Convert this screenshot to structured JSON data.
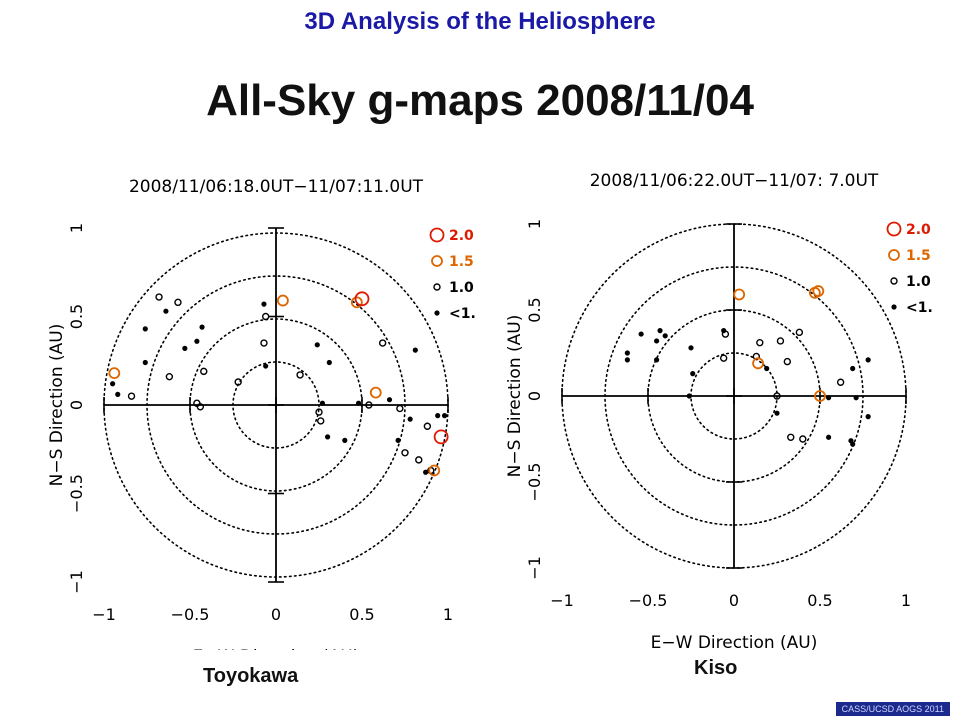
{
  "header": {
    "title": "3D Analysis of the Heliosphere"
  },
  "main": {
    "title": "All-Sky g-maps 2008/11/04"
  },
  "credit": "CASS/UCSD AOGS 2011",
  "chart_data": [
    {
      "type": "scatter",
      "title": "2008/11/06:18.0UT−11/07:11.0UT",
      "station": "Toyokawa",
      "xlabel": "E−W Direction (AU)",
      "ylabel": "N−S Direction (AU)",
      "xlim": [
        -1,
        1
      ],
      "ylim": [
        -1,
        1
      ],
      "xticks": [
        "−1",
        "−0.5",
        "0",
        "0.5",
        "1"
      ],
      "yticks": [
        "−1",
        "−0.5",
        "0",
        "0.5",
        "1"
      ],
      "circles": [
        0.25,
        0.5,
        0.75,
        1.0
      ],
      "legend": {
        "position": "top-right",
        "entries": [
          {
            "label": "2.0",
            "color": "#dd1a00",
            "size": "2.0"
          },
          {
            "label": "1.5",
            "color": "#dd6600",
            "size": "1.5"
          },
          {
            "label": "1.0",
            "color": "#000000",
            "size": "1.0"
          },
          {
            "label": "<1.",
            "color": "#000000",
            "size": "<1."
          }
        ]
      },
      "points": [
        {
          "x": -0.68,
          "y": 0.61,
          "g": "1.0"
        },
        {
          "x": -0.57,
          "y": 0.58,
          "g": "1.0"
        },
        {
          "x": -0.64,
          "y": 0.53,
          "g": "<1."
        },
        {
          "x": -0.76,
          "y": 0.43,
          "g": "<1."
        },
        {
          "x": -0.94,
          "y": 0.18,
          "g": "1.5"
        },
        {
          "x": -0.95,
          "y": 0.12,
          "g": "<1."
        },
        {
          "x": -0.92,
          "y": 0.06,
          "g": "<1."
        },
        {
          "x": -0.84,
          "y": 0.05,
          "g": "1.0"
        },
        {
          "x": -0.76,
          "y": 0.24,
          "g": "<1."
        },
        {
          "x": -0.62,
          "y": 0.16,
          "g": "1.0"
        },
        {
          "x": -0.53,
          "y": 0.32,
          "g": "<1."
        },
        {
          "x": -0.46,
          "y": 0.36,
          "g": "<1."
        },
        {
          "x": -0.43,
          "y": 0.44,
          "g": "<1."
        },
        {
          "x": -0.42,
          "y": 0.19,
          "g": "1.0"
        },
        {
          "x": -0.46,
          "y": 0.01,
          "g": "1.0"
        },
        {
          "x": -0.44,
          "y": -0.01,
          "g": "1.0"
        },
        {
          "x": -0.22,
          "y": 0.13,
          "g": "1.0"
        },
        {
          "x": -0.07,
          "y": 0.57,
          "g": "<1."
        },
        {
          "x": -0.06,
          "y": 0.5,
          "g": "1.0"
        },
        {
          "x": -0.07,
          "y": 0.35,
          "g": "1.0"
        },
        {
          "x": -0.06,
          "y": 0.22,
          "g": "<1."
        },
        {
          "x": 0.04,
          "y": 0.59,
          "g": "1.5"
        },
        {
          "x": 0.14,
          "y": 0.17,
          "g": "1.0"
        },
        {
          "x": 0.24,
          "y": 0.34,
          "g": "<1."
        },
        {
          "x": 0.31,
          "y": 0.24,
          "g": "<1."
        },
        {
          "x": 0.27,
          "y": 0.01,
          "g": "<1."
        },
        {
          "x": 0.25,
          "y": -0.04,
          "g": "1.0"
        },
        {
          "x": 0.26,
          "y": -0.09,
          "g": "1.0"
        },
        {
          "x": 0.3,
          "y": -0.18,
          "g": "<1."
        },
        {
          "x": 0.4,
          "y": -0.2,
          "g": "<1."
        },
        {
          "x": 0.47,
          "y": 0.58,
          "g": "1.5"
        },
        {
          "x": 0.5,
          "y": 0.6,
          "g": "2.0"
        },
        {
          "x": 0.48,
          "y": 0.01,
          "g": "<1."
        },
        {
          "x": 0.54,
          "y": 0.0,
          "g": "1.0"
        },
        {
          "x": 0.58,
          "y": 0.07,
          "g": "1.5"
        },
        {
          "x": 0.66,
          "y": 0.03,
          "g": "<1."
        },
        {
          "x": 0.72,
          "y": -0.02,
          "g": "1.0"
        },
        {
          "x": 0.78,
          "y": -0.08,
          "g": "<1."
        },
        {
          "x": 0.71,
          "y": -0.2,
          "g": "<1."
        },
        {
          "x": 0.75,
          "y": -0.27,
          "g": "1.0"
        },
        {
          "x": 0.83,
          "y": -0.31,
          "g": "1.0"
        },
        {
          "x": 0.87,
          "y": -0.38,
          "g": "<1."
        },
        {
          "x": 0.9,
          "y": -0.37,
          "g": "1.0"
        },
        {
          "x": 0.92,
          "y": -0.37,
          "g": "1.5"
        },
        {
          "x": 0.88,
          "y": -0.12,
          "g": "1.0"
        },
        {
          "x": 0.94,
          "y": -0.06,
          "g": "<1."
        },
        {
          "x": 0.98,
          "y": -0.06,
          "g": "<1."
        },
        {
          "x": 0.96,
          "y": -0.18,
          "g": "2.0"
        },
        {
          "x": 0.81,
          "y": 0.31,
          "g": "<1."
        },
        {
          "x": 0.62,
          "y": 0.35,
          "g": "1.0"
        }
      ]
    },
    {
      "type": "scatter",
      "title": "2008/11/06:22.0UT−11/07: 7.0UT",
      "station": "Kiso",
      "xlabel": "E−W Direction (AU)",
      "ylabel": "N−S Direction (AU)",
      "xlim": [
        -1,
        1
      ],
      "ylim": [
        -1,
        1
      ],
      "xticks": [
        "−1",
        "−0.5",
        "0",
        "0.5",
        "1"
      ],
      "yticks": [
        "−1",
        "−0.5",
        "0",
        "0.5",
        "1"
      ],
      "circles": [
        0.25,
        0.5,
        0.75,
        1.0
      ],
      "legend": {
        "position": "top-right",
        "entries": [
          {
            "label": "2.0",
            "color": "#dd1a00",
            "size": "2.0"
          },
          {
            "label": "1.5",
            "color": "#dd6600",
            "size": "1.5"
          },
          {
            "label": "1.0",
            "color": "#000000",
            "size": "1.0"
          },
          {
            "label": "<1.",
            "color": "#000000",
            "size": "<1."
          }
        ]
      },
      "points": [
        {
          "x": 0.03,
          "y": 0.59,
          "g": "1.5"
        },
        {
          "x": 0.47,
          "y": 0.6,
          "g": "1.5"
        },
        {
          "x": 0.49,
          "y": 0.61,
          "g": "1.5"
        },
        {
          "x": 0.38,
          "y": 0.37,
          "g": "1.0"
        },
        {
          "x": 0.27,
          "y": 0.32,
          "g": "1.0"
        },
        {
          "x": 0.15,
          "y": 0.31,
          "g": "1.0"
        },
        {
          "x": 0.31,
          "y": 0.2,
          "g": "1.0"
        },
        {
          "x": 0.13,
          "y": 0.23,
          "g": "1.0"
        },
        {
          "x": -0.05,
          "y": 0.36,
          "g": "1.0"
        },
        {
          "x": -0.06,
          "y": 0.38,
          "g": "<1."
        },
        {
          "x": -0.06,
          "y": 0.22,
          "g": "1.0"
        },
        {
          "x": -0.25,
          "y": 0.28,
          "g": "<1."
        },
        {
          "x": -0.43,
          "y": 0.38,
          "g": "<1."
        },
        {
          "x": -0.4,
          "y": 0.35,
          "g": "<1."
        },
        {
          "x": -0.45,
          "y": 0.32,
          "g": "<1."
        },
        {
          "x": -0.54,
          "y": 0.36,
          "g": "<1."
        },
        {
          "x": -0.62,
          "y": 0.25,
          "g": "<1."
        },
        {
          "x": -0.62,
          "y": 0.21,
          "g": "<1."
        },
        {
          "x": -0.45,
          "y": 0.21,
          "g": "<1."
        },
        {
          "x": -0.24,
          "y": 0.13,
          "g": "<1."
        },
        {
          "x": -0.26,
          "y": 0.0,
          "g": "<1."
        },
        {
          "x": 0.14,
          "y": 0.19,
          "g": "1.5"
        },
        {
          "x": 0.19,
          "y": 0.16,
          "g": "<1."
        },
        {
          "x": 0.25,
          "y": 0.0,
          "g": "1.0"
        },
        {
          "x": 0.25,
          "y": -0.1,
          "g": "<1."
        },
        {
          "x": 0.33,
          "y": -0.24,
          "g": "1.0"
        },
        {
          "x": 0.4,
          "y": -0.25,
          "g": "1.0"
        },
        {
          "x": 0.5,
          "y": 0.0,
          "g": "1.5"
        },
        {
          "x": 0.55,
          "y": -0.01,
          "g": "<1."
        },
        {
          "x": 0.62,
          "y": 0.08,
          "g": "1.0"
        },
        {
          "x": 0.69,
          "y": 0.16,
          "g": "<1."
        },
        {
          "x": 0.71,
          "y": -0.01,
          "g": "<1."
        },
        {
          "x": 0.78,
          "y": -0.12,
          "g": "<1."
        },
        {
          "x": 0.68,
          "y": -0.26,
          "g": "<1."
        },
        {
          "x": 0.69,
          "y": -0.28,
          "g": "<1."
        },
        {
          "x": 0.55,
          "y": -0.24,
          "g": "<1."
        },
        {
          "x": 0.78,
          "y": 0.21,
          "g": "<1."
        }
      ]
    }
  ]
}
